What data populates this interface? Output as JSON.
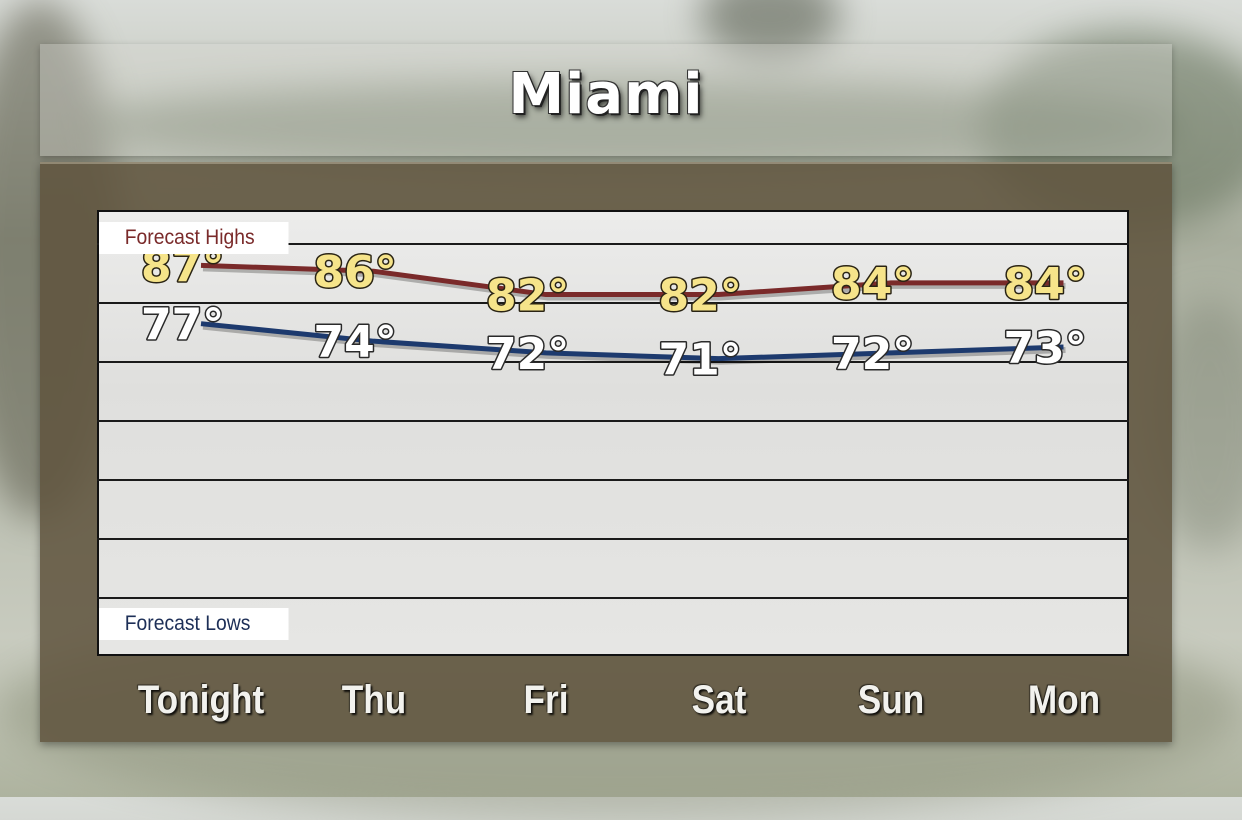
{
  "title": "Miami",
  "chart_data": {
    "type": "line",
    "categories": [
      "Tonight",
      "Thu",
      "Fri",
      "Sat",
      "Sun",
      "Mon"
    ],
    "series": [
      {
        "name": "Forecast Highs",
        "values": [
          87,
          86,
          82,
          82,
          84,
          84
        ],
        "color": "#7a2a2a",
        "label_color": "#f6e48a"
      },
      {
        "name": "Forecast Lows",
        "values": [
          77,
          74,
          72,
          71,
          72,
          73
        ],
        "color": "#1d3a6e",
        "label_color": "#ffffff"
      }
    ],
    "value_suffix": "°",
    "grid": true
  },
  "colors": {
    "panel": "#5f543e",
    "highs_line": "#7a2a2a",
    "lows_line": "#1d3a6e",
    "high_label": "#f6e48a",
    "low_label": "#ffffff"
  }
}
